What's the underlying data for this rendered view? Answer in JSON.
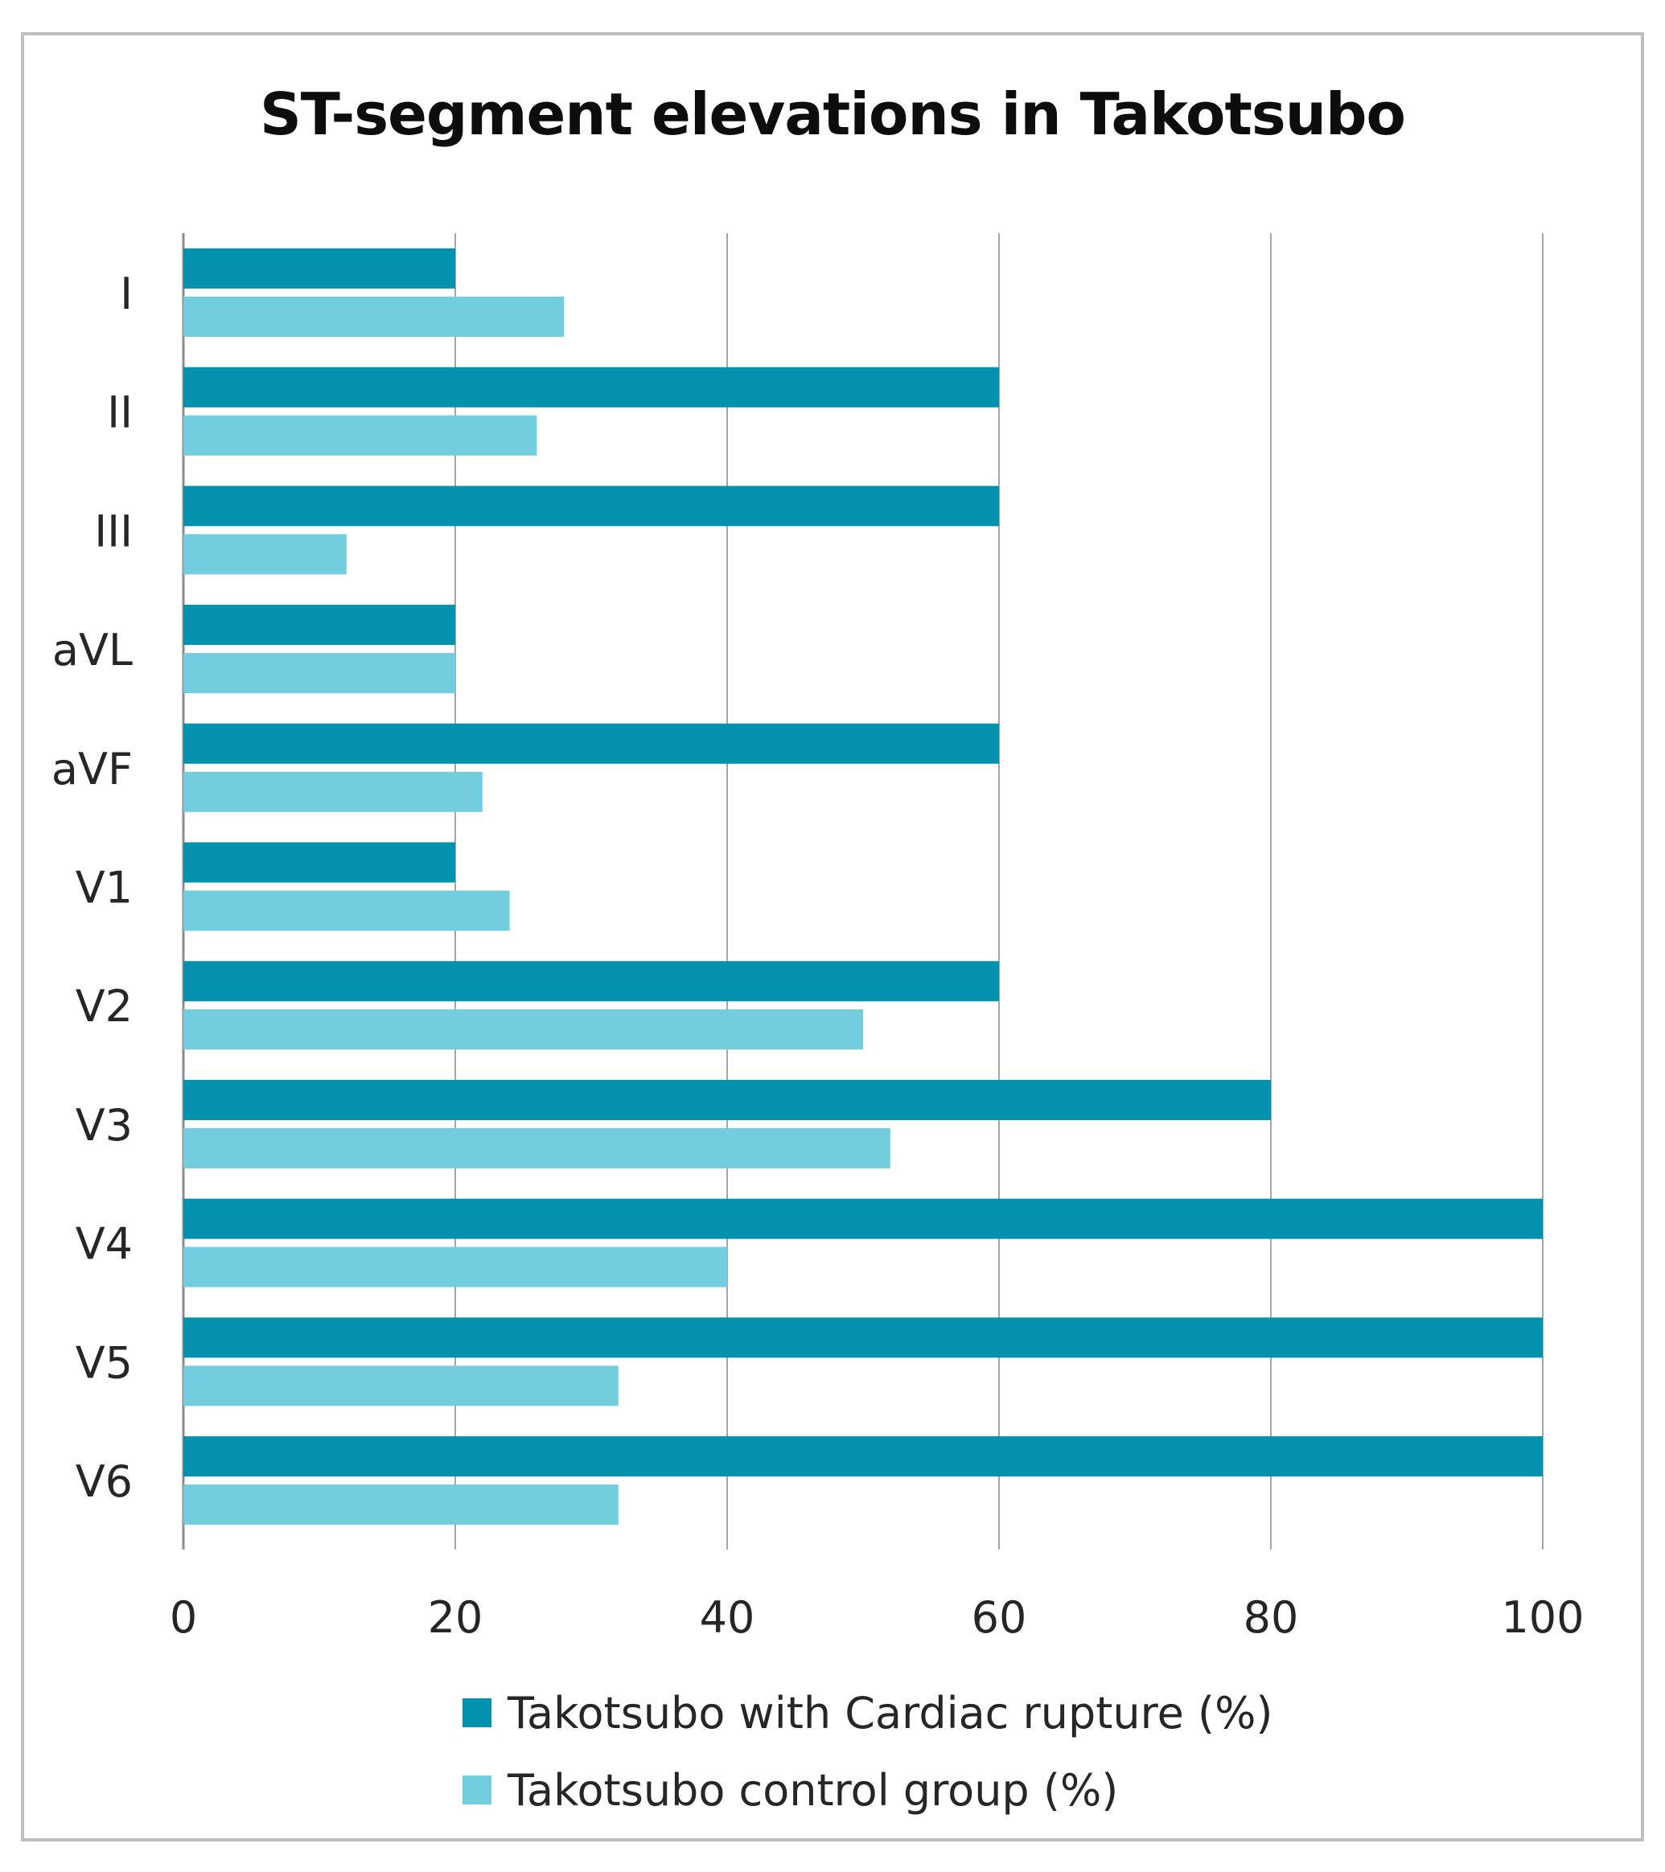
{
  "chart_data": {
    "type": "bar",
    "orientation": "horizontal",
    "title": "ST-segment elevations in Takotsubo",
    "categories": [
      "I",
      "II",
      "III",
      "aVL",
      "aVF",
      "V1",
      "V2",
      "V3",
      "V4",
      "V5",
      "V6"
    ],
    "series": [
      {
        "name": "Takotsubo with Cardiac rupture (%)",
        "color": "#0292AE",
        "values": [
          20,
          60,
          60,
          20,
          60,
          20,
          60,
          80,
          100,
          100,
          100
        ]
      },
      {
        "name": "Takotsubo control group (%)",
        "color": "#72CDDF",
        "values": [
          28,
          26,
          12,
          20,
          22,
          24,
          50,
          52,
          40,
          32,
          32
        ]
      }
    ],
    "xlim": [
      0,
      100
    ],
    "xticks": [
      0,
      20,
      40,
      60,
      80,
      100
    ],
    "xlabel": "",
    "ylabel": "",
    "grid": "vertical",
    "legend_position": "bottom"
  }
}
